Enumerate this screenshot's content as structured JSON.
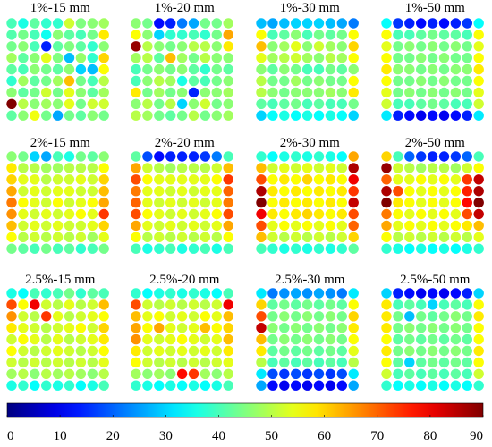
{
  "chart_data": {
    "type": "heatmap",
    "colormap": "jet",
    "grid_size": [
      9,
      9
    ],
    "value_range": [
      0,
      90
    ],
    "colorbar": {
      "orientation": "horizontal",
      "ticks": [
        "0",
        "10",
        "20",
        "30",
        "40",
        "50",
        "60",
        "70",
        "80",
        "90"
      ]
    },
    "panels": [
      {
        "title": "1%-15 mm",
        "values": [
          [
            40,
            36,
            42,
            38,
            38,
            52,
            45,
            46,
            48
          ],
          [
            41,
            44,
            40,
            35,
            46,
            42,
            40,
            44,
            58
          ],
          [
            44,
            46,
            40,
            14,
            42,
            45,
            42,
            38,
            46
          ],
          [
            48,
            42,
            46,
            54,
            45,
            28,
            47,
            38,
            60
          ],
          [
            42,
            40,
            46,
            44,
            42,
            46,
            30,
            28,
            56
          ],
          [
            38,
            48,
            42,
            44,
            48,
            62,
            44,
            40,
            50
          ],
          [
            46,
            42,
            44,
            52,
            44,
            54,
            46,
            42,
            48
          ],
          [
            90,
            50,
            46,
            48,
            46,
            54,
            44,
            52,
            52
          ],
          [
            42,
            46,
            55,
            44,
            26,
            44,
            42,
            46,
            44
          ]
        ]
      },
      {
        "title": "1%-20 mm",
        "values": [
          [
            46,
            44,
            12,
            14,
            22,
            26,
            44,
            44,
            48
          ],
          [
            56,
            46,
            30,
            38,
            38,
            40,
            38,
            44,
            64
          ],
          [
            88,
            50,
            46,
            44,
            46,
            50,
            50,
            46,
            58
          ],
          [
            48,
            50,
            42,
            62,
            48,
            44,
            50,
            46,
            46
          ],
          [
            40,
            44,
            46,
            44,
            46,
            42,
            38,
            44,
            42
          ],
          [
            40,
            46,
            50,
            48,
            36,
            42,
            40,
            44,
            46
          ],
          [
            58,
            44,
            48,
            44,
            46,
            14,
            46,
            46,
            48
          ],
          [
            46,
            50,
            44,
            50,
            30,
            46,
            52,
            44,
            46
          ],
          [
            50,
            48,
            44,
            42,
            44,
            50,
            44,
            46,
            48
          ]
        ]
      },
      {
        "title": "1%-30 mm",
        "values": [
          [
            28,
            26,
            28,
            30,
            30,
            30,
            28,
            26,
            22
          ],
          [
            56,
            40,
            42,
            46,
            40,
            44,
            42,
            44,
            56
          ],
          [
            62,
            46,
            48,
            54,
            46,
            52,
            48,
            46,
            60
          ],
          [
            54,
            48,
            50,
            52,
            48,
            46,
            50,
            48,
            56
          ],
          [
            46,
            42,
            46,
            44,
            40,
            40,
            44,
            42,
            46
          ],
          [
            50,
            44,
            44,
            48,
            44,
            46,
            44,
            44,
            56
          ],
          [
            50,
            46,
            44,
            46,
            46,
            46,
            48,
            46,
            58
          ],
          [
            42,
            40,
            42,
            44,
            40,
            42,
            40,
            40,
            44
          ],
          [
            30,
            34,
            36,
            34,
            36,
            34,
            36,
            34,
            30
          ]
        ]
      },
      {
        "title": "1%-50 mm",
        "values": [
          [
            34,
            16,
            14,
            12,
            14,
            12,
            14,
            16,
            34
          ],
          [
            56,
            40,
            40,
            42,
            44,
            42,
            42,
            40,
            56
          ],
          [
            54,
            44,
            46,
            44,
            46,
            44,
            46,
            44,
            54
          ],
          [
            56,
            44,
            44,
            46,
            44,
            46,
            44,
            44,
            56
          ],
          [
            58,
            46,
            46,
            44,
            46,
            44,
            46,
            46,
            58
          ],
          [
            56,
            44,
            44,
            46,
            44,
            46,
            44,
            44,
            56
          ],
          [
            54,
            44,
            46,
            44,
            46,
            44,
            46,
            44,
            54
          ],
          [
            52,
            40,
            40,
            42,
            44,
            42,
            40,
            40,
            52
          ],
          [
            32,
            14,
            12,
            10,
            12,
            10,
            12,
            14,
            32
          ]
        ]
      },
      {
        "title": "2%-15 mm",
        "values": [
          [
            46,
            44,
            30,
            26,
            40,
            36,
            44,
            42,
            46
          ],
          [
            58,
            50,
            50,
            48,
            48,
            50,
            50,
            50,
            56
          ],
          [
            60,
            54,
            54,
            50,
            52,
            52,
            54,
            52,
            60
          ],
          [
            64,
            52,
            54,
            52,
            54,
            54,
            52,
            52,
            62
          ],
          [
            68,
            56,
            54,
            52,
            56,
            52,
            54,
            56,
            64
          ],
          [
            66,
            54,
            52,
            54,
            52,
            54,
            56,
            54,
            74
          ],
          [
            62,
            52,
            54,
            52,
            54,
            52,
            52,
            54,
            60
          ],
          [
            56,
            50,
            52,
            50,
            52,
            50,
            52,
            48,
            54
          ],
          [
            44,
            42,
            40,
            44,
            40,
            42,
            38,
            40,
            44
          ]
        ]
      },
      {
        "title": "2%-20 mm",
        "values": [
          [
            42,
            18,
            12,
            14,
            14,
            14,
            16,
            22,
            40
          ],
          [
            64,
            52,
            50,
            48,
            50,
            50,
            50,
            52,
            62
          ],
          [
            72,
            56,
            54,
            54,
            54,
            54,
            54,
            56,
            74
          ],
          [
            68,
            54,
            54,
            52,
            54,
            52,
            54,
            54,
            70
          ],
          [
            70,
            54,
            52,
            54,
            52,
            54,
            52,
            54,
            68
          ],
          [
            72,
            56,
            54,
            52,
            54,
            52,
            54,
            56,
            72
          ],
          [
            64,
            54,
            52,
            54,
            52,
            54,
            52,
            54,
            64
          ],
          [
            56,
            50,
            52,
            50,
            52,
            50,
            52,
            50,
            56
          ],
          [
            40,
            36,
            38,
            40,
            36,
            38,
            40,
            36,
            40
          ]
        ]
      },
      {
        "title": "2%-30 mm",
        "values": [
          [
            38,
            34,
            36,
            38,
            36,
            38,
            36,
            34,
            64
          ],
          [
            62,
            52,
            54,
            52,
            54,
            52,
            54,
            52,
            86
          ],
          [
            72,
            56,
            58,
            56,
            60,
            56,
            58,
            56,
            80
          ],
          [
            86,
            58,
            56,
            58,
            56,
            58,
            56,
            58,
            74
          ],
          [
            90,
            56,
            58,
            56,
            58,
            56,
            58,
            56,
            84
          ],
          [
            80,
            58,
            56,
            58,
            60,
            58,
            56,
            58,
            72
          ],
          [
            72,
            54,
            56,
            54,
            56,
            54,
            56,
            54,
            70
          ],
          [
            62,
            52,
            50,
            52,
            50,
            52,
            50,
            52,
            60
          ],
          [
            40,
            38,
            36,
            38,
            36,
            38,
            36,
            38,
            42
          ]
        ]
      },
      {
        "title": "2%-50 mm",
        "values": [
          [
            60,
            40,
            20,
            16,
            14,
            14,
            16,
            20,
            40
          ],
          [
            88,
            52,
            50,
            48,
            50,
            50,
            48,
            52,
            56
          ],
          [
            70,
            54,
            54,
            56,
            54,
            56,
            54,
            74,
            84
          ],
          [
            86,
            72,
            56,
            54,
            56,
            54,
            56,
            76,
            86
          ],
          [
            90,
            58,
            56,
            54,
            56,
            54,
            56,
            78,
            90
          ],
          [
            68,
            56,
            54,
            56,
            54,
            56,
            54,
            72,
            84
          ],
          [
            64,
            54,
            56,
            54,
            56,
            54,
            56,
            58,
            62
          ],
          [
            56,
            50,
            52,
            50,
            52,
            50,
            52,
            50,
            54
          ],
          [
            38,
            36,
            34,
            36,
            34,
            36,
            34,
            36,
            38
          ]
        ]
      },
      {
        "title": "2.5%-15 mm",
        "values": [
          [
            36,
            34,
            40,
            38,
            40,
            44,
            38,
            42,
            40
          ],
          [
            72,
            56,
            80,
            52,
            50,
            54,
            50,
            52,
            62
          ],
          [
            66,
            52,
            50,
            74,
            54,
            50,
            52,
            54,
            56
          ],
          [
            58,
            54,
            52,
            50,
            52,
            54,
            56,
            52,
            60
          ],
          [
            52,
            56,
            54,
            50,
            54,
            50,
            52,
            54,
            58
          ],
          [
            56,
            52,
            50,
            52,
            54,
            52,
            50,
            52,
            56
          ],
          [
            52,
            50,
            52,
            50,
            52,
            50,
            52,
            50,
            54
          ],
          [
            48,
            50,
            46,
            50,
            48,
            50,
            48,
            46,
            50
          ],
          [
            36,
            38,
            34,
            38,
            36,
            38,
            34,
            36,
            40
          ]
        ]
      },
      {
        "title": "2.5%-20 mm",
        "values": [
          [
            38,
            34,
            36,
            38,
            36,
            38,
            36,
            34,
            40
          ],
          [
            72,
            52,
            50,
            52,
            50,
            52,
            50,
            52,
            80
          ],
          [
            62,
            54,
            56,
            52,
            54,
            52,
            56,
            54,
            62
          ],
          [
            64,
            56,
            64,
            54,
            52,
            54,
            62,
            56,
            60
          ],
          [
            66,
            54,
            52,
            54,
            56,
            54,
            52,
            54,
            62
          ],
          [
            58,
            52,
            54,
            52,
            54,
            52,
            54,
            52,
            58
          ],
          [
            56,
            52,
            50,
            52,
            50,
            52,
            50,
            52,
            54
          ],
          [
            48,
            46,
            48,
            46,
            78,
            74,
            48,
            46,
            50
          ],
          [
            38,
            36,
            34,
            36,
            34,
            36,
            34,
            36,
            40
          ]
        ]
      },
      {
        "title": "2.5%-30 mm",
        "values": [
          [
            32,
            22,
            24,
            26,
            24,
            26,
            24,
            22,
            32
          ],
          [
            60,
            42,
            44,
            42,
            44,
            42,
            44,
            42,
            56
          ],
          [
            72,
            44,
            46,
            44,
            46,
            44,
            46,
            44,
            60
          ],
          [
            84,
            46,
            44,
            46,
            44,
            46,
            44,
            46,
            58
          ],
          [
            62,
            44,
            46,
            44,
            46,
            44,
            46,
            44,
            56
          ],
          [
            58,
            42,
            44,
            42,
            44,
            42,
            44,
            42,
            54
          ],
          [
            50,
            40,
            42,
            40,
            42,
            40,
            42,
            40,
            50
          ],
          [
            32,
            18,
            16,
            18,
            16,
            18,
            16,
            18,
            32
          ],
          [
            26,
            12,
            10,
            12,
            10,
            12,
            10,
            12,
            26
          ]
        ]
      },
      {
        "title": "2.5%-50 mm",
        "values": [
          [
            30,
            14,
            12,
            10,
            12,
            10,
            12,
            14,
            30
          ],
          [
            58,
            40,
            42,
            40,
            30,
            40,
            42,
            40,
            56
          ],
          [
            58,
            44,
            28,
            44,
            42,
            44,
            46,
            44,
            58
          ],
          [
            58,
            44,
            46,
            44,
            46,
            44,
            46,
            44,
            56
          ],
          [
            56,
            42,
            44,
            42,
            44,
            42,
            44,
            42,
            56
          ],
          [
            58,
            44,
            46,
            44,
            46,
            44,
            46,
            44,
            58
          ],
          [
            56,
            42,
            30,
            42,
            44,
            42,
            44,
            42,
            56
          ],
          [
            52,
            40,
            42,
            40,
            42,
            40,
            42,
            40,
            52
          ],
          [
            38,
            34,
            36,
            34,
            36,
            34,
            36,
            34,
            38
          ]
        ]
      }
    ]
  }
}
